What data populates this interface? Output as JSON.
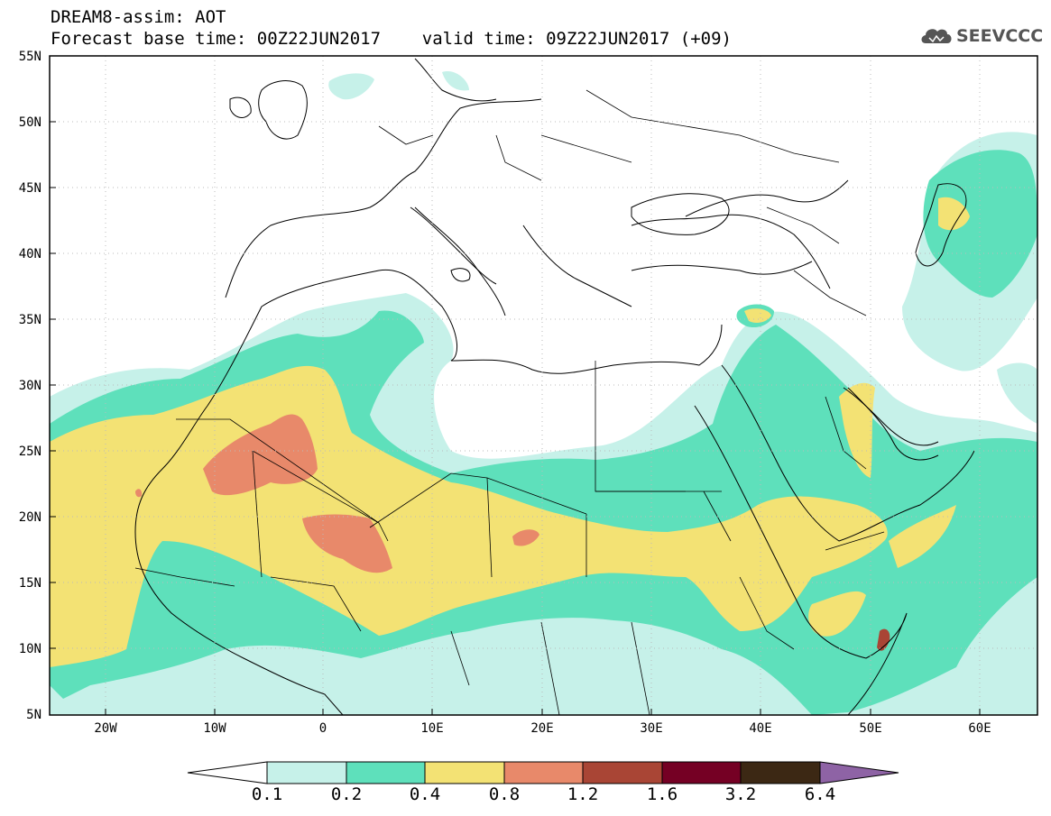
{
  "title": {
    "line1": "DREAM8-assim: AOT",
    "line2": "Forecast base time: 00Z22JUN2017    valid time: 09Z22JUN2017 (+09)"
  },
  "logo": {
    "text": "SEEVCCC",
    "icon": "cloud-icon"
  },
  "map": {
    "lat_labels": [
      "55N",
      "50N",
      "45N",
      "40N",
      "35N",
      "30N",
      "25N",
      "20N",
      "15N",
      "10N",
      "5N"
    ],
    "lon_labels": [
      "20W",
      "10W",
      "0",
      "10E",
      "20E",
      "30E",
      "40E",
      "50E",
      "60E"
    ],
    "extent": {
      "lon_min": -25,
      "lon_max": 65,
      "lat_min": 5,
      "lat_max": 55
    }
  },
  "colorbar": {
    "levels": [
      "0.1",
      "0.2",
      "0.4",
      "0.8",
      "1.2",
      "1.6",
      "3.2",
      "6.4"
    ],
    "colors": {
      "under": "#ffffff",
      "c1": "#c6f1e9",
      "c2": "#5ee0bb",
      "c3": "#f3e274",
      "c4": "#e8896a",
      "c5": "#a94535",
      "c6": "#750024",
      "c7": "#3c2814",
      "over": "#8e63a5"
    }
  }
}
